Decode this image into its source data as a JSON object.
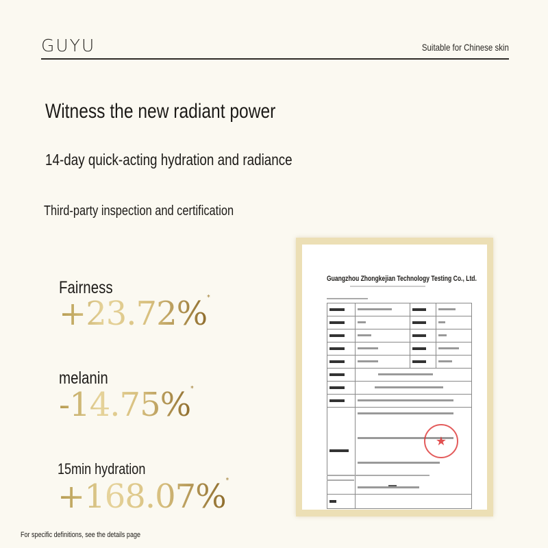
{
  "header": {
    "brand": "GUYU",
    "tagline": "Suitable for Chinese skin"
  },
  "headline": "Witness the new radiant power",
  "subheadline": "14-day quick-acting hydration and radiance",
  "certification_heading": "Third-party inspection and certification",
  "stats": [
    {
      "label": "Fairness",
      "value": "+23.72%",
      "mark": "*"
    },
    {
      "label": "melanin",
      "value": "-14.75%",
      "mark": "*"
    },
    {
      "label": "15min hydration",
      "value": "+168.07%",
      "mark": "*"
    }
  ],
  "footnote": "For specific definitions, see the details page",
  "certificate": {
    "company": "Guangzhou Zhongkejian Technology Testing Co., Ltd.",
    "stamp_icon": "red-seal-star-icon"
  },
  "colors": {
    "background": "#fbf9f1",
    "gold": "#c9ab63",
    "frame": "#ecdfb5",
    "stamp": "#dc3232"
  }
}
